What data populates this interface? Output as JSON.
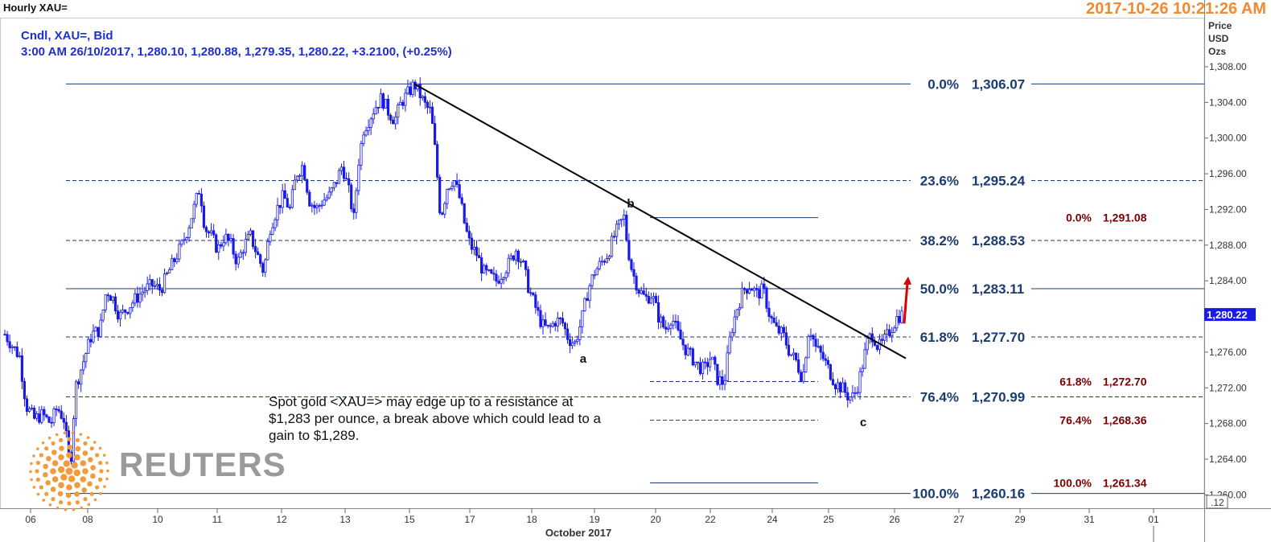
{
  "header": {
    "title": "Hourly XAU=",
    "timestamp": "2017-10-26 10:21:26 AM"
  },
  "info": {
    "line1": "Cndl, XAU=, Bid",
    "line2": "3:00 AM 26/10/2017, 1,280.10, 1,280.88, 1,279.35, 1,280.22, +3.2100, (+0.25%)"
  },
  "axis": {
    "units_line1": "Price",
    "units_line2": "USD",
    "units_line3": "Ozs",
    "corner_label": ".12",
    "month_label": "October 2017"
  },
  "annotation": {
    "text": "Spot gold <XAU=> may edge up to a resistance at $1,283 per ounce, a break above which could lead to a gain to $1,289."
  },
  "branding": {
    "logo_text": "REUTERS"
  },
  "colors": {
    "candle": "#1a1ae6",
    "fib_main": "#1a3c6e",
    "fib_second": "#7a0000",
    "current_price_bg": "#1a1ae6",
    "arrow": "#e00000",
    "logo_orange": "#f29a3c",
    "trendline": "#000000"
  },
  "chart_data": {
    "type": "candlestick",
    "title": "Hourly XAU=",
    "ylabel": "Price USD Ozs",
    "xlabel": "October 2017",
    "ylim": [
      1258.5,
      1313.5
    ],
    "y_ticks": [
      "1,260.00",
      "1,264.00",
      "1,268.00",
      "1,272.00",
      "1,276.00",
      "1,280.00",
      "1,284.00",
      "1,288.00",
      "1,292.00",
      "1,296.00",
      "1,300.00",
      "1,304.00",
      "1,308.00"
    ],
    "y_tick_values": [
      1260,
      1264,
      1268,
      1272,
      1276,
      1280,
      1284,
      1288,
      1292,
      1296,
      1300,
      1304,
      1308
    ],
    "x_ticks": [
      "06",
      "08",
      "10",
      "11",
      "12",
      "13",
      "15",
      "17",
      "18",
      "19",
      "20",
      "22",
      "24",
      "25",
      "26",
      "27",
      "29",
      "31",
      "01"
    ],
    "current_price": 1280.22,
    "current_price_label": "1,280.22",
    "price_path": [
      [
        0,
        1278
      ],
      [
        0.9,
        1275.5
      ],
      [
        1.3,
        1270
      ],
      [
        1.8,
        1268.5
      ],
      [
        2.3,
        1269
      ],
      [
        2.8,
        1268
      ],
      [
        3.2,
        1269.8
      ],
      [
        3.6,
        1268.5
      ],
      [
        4.0,
        1263
      ],
      [
        4.3,
        1272
      ],
      [
        4.8,
        1275
      ],
      [
        5.3,
        1278
      ],
      [
        5.8,
        1278.5
      ],
      [
        6.2,
        1283
      ],
      [
        6.6,
        1282
      ],
      [
        7.0,
        1280
      ],
      [
        7.5,
        1281
      ],
      [
        8.0,
        1282
      ],
      [
        8.5,
        1283
      ],
      [
        9.0,
        1283.5
      ],
      [
        9.5,
        1283
      ],
      [
        10.0,
        1285
      ],
      [
        10.4,
        1286.5
      ],
      [
        10.8,
        1288
      ],
      [
        11.2,
        1290
      ],
      [
        11.6,
        1292.5
      ],
      [
        11.9,
        1294.5
      ],
      [
        12.2,
        1290
      ],
      [
        12.6,
        1289
      ],
      [
        13.0,
        1287.5
      ],
      [
        13.4,
        1289
      ],
      [
        13.8,
        1288
      ],
      [
        14.2,
        1286
      ],
      [
        14.6,
        1288
      ],
      [
        15.0,
        1289
      ],
      [
        15.4,
        1287
      ],
      [
        15.8,
        1285
      ],
      [
        16.2,
        1290
      ],
      [
        16.6,
        1292
      ],
      [
        17.0,
        1293.5
      ],
      [
        17.4,
        1292
      ],
      [
        17.8,
        1296
      ],
      [
        18.2,
        1297
      ],
      [
        18.6,
        1293
      ],
      [
        19.0,
        1292
      ],
      [
        19.4,
        1293
      ],
      [
        19.8,
        1293.5
      ],
      [
        20.2,
        1295
      ],
      [
        20.6,
        1297
      ],
      [
        21.0,
        1294
      ],
      [
        21.3,
        1291
      ],
      [
        21.6,
        1297.5
      ],
      [
        21.9,
        1301
      ],
      [
        22.2,
        1302
      ],
      [
        22.6,
        1303.5
      ],
      [
        23.0,
        1304.5
      ],
      [
        23.4,
        1303
      ],
      [
        23.8,
        1302
      ],
      [
        24.2,
        1304
      ],
      [
        24.6,
        1305
      ],
      [
        25.0,
        1306.07
      ],
      [
        25.3,
        1305
      ],
      [
        25.7,
        1303.5
      ],
      [
        26.0,
        1303
      ],
      [
        26.3,
        1298
      ],
      [
        26.6,
        1291
      ],
      [
        27.0,
        1294.5
      ],
      [
        27.4,
        1295.5
      ],
      [
        27.8,
        1293
      ],
      [
        28.1,
        1290
      ],
      [
        28.4,
        1288
      ],
      [
        28.8,
        1287
      ],
      [
        29.2,
        1285
      ],
      [
        29.6,
        1284.5
      ],
      [
        30.0,
        1284
      ],
      [
        30.4,
        1285
      ],
      [
        30.8,
        1286
      ],
      [
        31.2,
        1287.5
      ],
      [
        31.6,
        1286
      ],
      [
        32.0,
        1283
      ],
      [
        32.4,
        1281
      ],
      [
        32.8,
        1279
      ],
      [
        33.2,
        1278.5
      ],
      [
        33.6,
        1279.5
      ],
      [
        34.0,
        1279.5
      ],
      [
        34.4,
        1277.5
      ],
      [
        34.8,
        1277
      ],
      [
        35.2,
        1279.5
      ],
      [
        35.6,
        1283
      ],
      [
        36.0,
        1285
      ],
      [
        36.4,
        1286
      ],
      [
        36.8,
        1287
      ],
      [
        37.2,
        1289
      ],
      [
        37.6,
        1290.5
      ],
      [
        37.8,
        1291.08
      ],
      [
        38.0,
        1288
      ],
      [
        38.3,
        1285
      ],
      [
        38.7,
        1283
      ],
      [
        39.1,
        1282
      ],
      [
        39.5,
        1282.5
      ],
      [
        39.9,
        1280
      ],
      [
        40.3,
        1278.5
      ],
      [
        40.7,
        1280
      ],
      [
        41.1,
        1278
      ],
      [
        41.5,
        1276.5
      ],
      [
        41.9,
        1275.5
      ],
      [
        42.3,
        1274.5
      ],
      [
        42.7,
        1274
      ],
      [
        43.1,
        1275.5
      ],
      [
        43.5,
        1273
      ],
      [
        43.9,
        1272.5
      ],
      [
        44.3,
        1278
      ],
      [
        44.7,
        1281
      ],
      [
        45.1,
        1283
      ],
      [
        45.5,
        1283.5
      ],
      [
        45.9,
        1282.5
      ],
      [
        46.3,
        1283
      ],
      [
        46.7,
        1280
      ],
      [
        47.1,
        1278.5
      ],
      [
        47.5,
        1278
      ],
      [
        47.9,
        1276
      ],
      [
        48.3,
        1275
      ],
      [
        48.7,
        1273
      ],
      [
        49.1,
        1279
      ],
      [
        49.5,
        1276.5
      ],
      [
        49.9,
        1275.5
      ],
      [
        50.3,
        1274
      ],
      [
        50.7,
        1272.5
      ],
      [
        51.1,
        1272
      ],
      [
        51.5,
        1271
      ],
      [
        51.8,
        1270.99
      ],
      [
        52.1,
        1272.5
      ],
      [
        52.4,
        1275
      ],
      [
        52.7,
        1277.5
      ],
      [
        53.0,
        1278
      ],
      [
        53.3,
        1276.5
      ],
      [
        53.6,
        1277
      ],
      [
        53.9,
        1278
      ],
      [
        54.2,
        1279
      ],
      [
        54.5,
        1280
      ],
      [
        54.8,
        1280.22
      ]
    ],
    "trendline": [
      [
        25.0,
        1306.07
      ],
      [
        55.0,
        1275.3
      ]
    ],
    "wave_labels": [
      {
        "label": "a",
        "x": 35.3,
        "y": 1274.8
      },
      {
        "label": "b",
        "x": 38.2,
        "y": 1292.2
      },
      {
        "label": "c",
        "x": 52.4,
        "y": 1267.7
      }
    ],
    "fib_main": [
      {
        "pct": "0.0%",
        "value": "1,306.07",
        "price": 1306.07,
        "style": "solid"
      },
      {
        "pct": "23.6%",
        "value": "1,295.24",
        "price": 1295.24,
        "style": "dashed"
      },
      {
        "pct": "38.2%",
        "value": "1,288.53",
        "price": 1288.53,
        "style": "dashed"
      },
      {
        "pct": "50.0%",
        "value": "1,283.11",
        "price": 1283.11,
        "style": "solid"
      },
      {
        "pct": "61.8%",
        "value": "1,277.70",
        "price": 1277.7,
        "style": "dashed"
      },
      {
        "pct": "76.4%",
        "value": "1,270.99",
        "price": 1270.99,
        "style": "dashed"
      },
      {
        "pct": "100.0%",
        "value": "1,260.16",
        "price": 1260.16,
        "style": "solid"
      }
    ],
    "fib_secondary": [
      {
        "pct": "0.0%",
        "value": "1,291.08",
        "price": 1291.08,
        "style": "solid"
      },
      {
        "pct": "61.8%",
        "value": "1,272.70",
        "price": 1272.7,
        "style": "dashed"
      },
      {
        "pct": "76.4%",
        "value": "1,268.36",
        "price": 1268.36,
        "style": "dashed"
      },
      {
        "pct": "100.0%",
        "value": "1,261.34",
        "price": 1261.34,
        "style": "solid"
      }
    ],
    "grid": true
  }
}
